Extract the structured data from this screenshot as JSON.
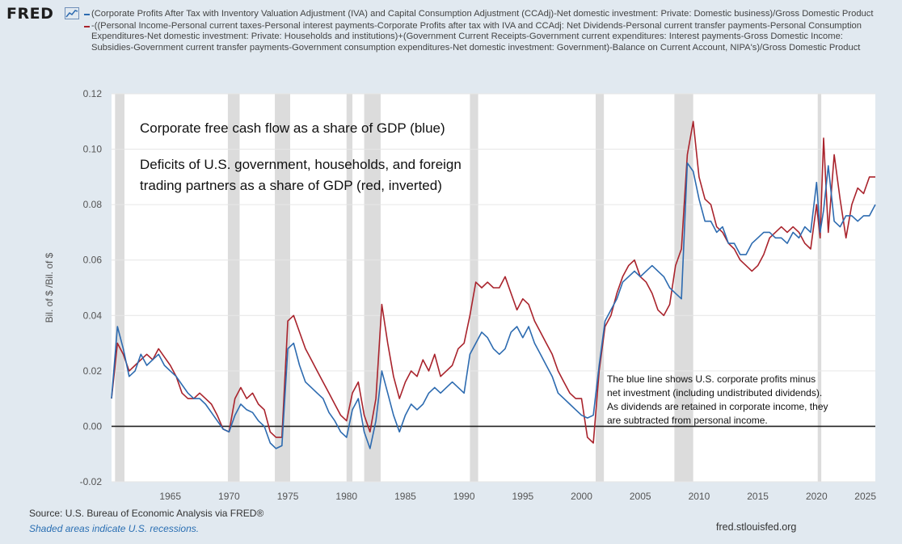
{
  "header": {
    "logo_text": "FRED",
    "logo_icon": "chart-line-icon"
  },
  "legend": [
    {
      "color": "#2d6bb0",
      "text": "(Corporate Profits After Tax with Inventory Valuation Adjustment (IVA) and Capital Consumption Adjustment (CCAdj)-Net domestic investment: Private: Domestic business)/Gross Domestic Product"
    },
    {
      "color": "#a9232c",
      "text": "-((Personal Income-Personal current taxes-Personal interest payments-Corporate Profits after tax with IVA and CCAdj: Net Dividends-Personal current transfer payments-Personal Consumption Expenditures-Net domestic investment: Private: Households and institutions)+(Government Current Receipts-Government current expenditures: Interest payments-Gross Domestic Income: Subsidies-Government current transfer payments-Government consumption expenditures-Net domestic investment: Government)-Balance on Current Account, NIPA's)/Gross Domestic Product"
    }
  ],
  "footer": {
    "source": "Source: U.S. Bureau of Economic Analysis via FRED®",
    "recession_note": "Shaded areas indicate U.S. recessions.",
    "site": "fred.stlouisfed.org"
  },
  "chart_data": {
    "type": "line",
    "ylabel": "Bil. of $ /Bil. of $",
    "xlabel": "",
    "xlim": [
      1960.0,
      2025.0
    ],
    "ylim": [
      -0.02,
      0.12
    ],
    "x_ticks": [
      1965,
      1970,
      1975,
      1980,
      1985,
      1990,
      1995,
      2000,
      2005,
      2010,
      2015,
      2020,
      2025
    ],
    "y_ticks": [
      -0.02,
      0.0,
      0.02,
      0.04,
      0.06,
      0.08,
      0.1,
      0.12
    ],
    "y_tick_labels": [
      "-0.02",
      "0.00",
      "0.02",
      "0.04",
      "0.06",
      "0.08",
      "0.10",
      "0.12"
    ],
    "zero_line": 0.0,
    "recessions": [
      [
        1960.3,
        1961.1
      ],
      [
        1969.9,
        1970.9
      ],
      [
        1973.9,
        1975.2
      ],
      [
        1980.0,
        1980.5
      ],
      [
        1981.5,
        1982.9
      ],
      [
        1990.5,
        1991.2
      ],
      [
        2001.2,
        2001.9
      ],
      [
        2007.9,
        2009.5
      ],
      [
        2020.1,
        2020.4
      ]
    ],
    "annotations": {
      "title_line": "Corporate free cash flow as a share of GDP (blue)",
      "subtitle_lines": [
        "Deficits of U.S. government, households, and foreign",
        "trading partners as a share of GDP (red, inverted)"
      ],
      "note_lines": [
        "The blue line shows U.S. corporate profits minus",
        "net investment (including undistributed dividends).",
        "As dividends are retained in corporate income, they",
        "are subtracted from personal income."
      ]
    },
    "series": [
      {
        "name": "Corporate free cash flow",
        "color": "#2d6bb0",
        "x": [
          1960.0,
          1960.5,
          1961.0,
          1961.5,
          1962.0,
          1962.5,
          1963.0,
          1963.5,
          1964.0,
          1964.5,
          1965.0,
          1965.5,
          1966.0,
          1966.5,
          1967.0,
          1967.5,
          1968.0,
          1968.5,
          1969.0,
          1969.5,
          1970.0,
          1970.5,
          1971.0,
          1971.5,
          1972.0,
          1972.5,
          1973.0,
          1973.5,
          1974.0,
          1974.5,
          1975.0,
          1975.5,
          1976.0,
          1976.5,
          1977.0,
          1977.5,
          1978.0,
          1978.5,
          1979.0,
          1979.5,
          1980.0,
          1980.5,
          1981.0,
          1981.5,
          1982.0,
          1982.5,
          1983.0,
          1983.5,
          1984.0,
          1984.5,
          1985.0,
          1985.5,
          1986.0,
          1986.5,
          1987.0,
          1987.5,
          1988.0,
          1988.5,
          1989.0,
          1989.5,
          1990.0,
          1990.5,
          1991.0,
          1991.5,
          1992.0,
          1992.5,
          1993.0,
          1993.5,
          1994.0,
          1994.5,
          1995.0,
          1995.5,
          1996.0,
          1996.5,
          1997.0,
          1997.5,
          1998.0,
          1998.5,
          1999.0,
          1999.5,
          2000.0,
          2000.5,
          2001.0,
          2001.5,
          2002.0,
          2002.5,
          2003.0,
          2003.5,
          2004.0,
          2004.5,
          2005.0,
          2005.5,
          2006.0,
          2006.5,
          2007.0,
          2007.5,
          2008.0,
          2008.5,
          2009.0,
          2009.5,
          2010.0,
          2010.5,
          2011.0,
          2011.5,
          2012.0,
          2012.5,
          2013.0,
          2013.5,
          2014.0,
          2014.5,
          2015.0,
          2015.5,
          2016.0,
          2016.5,
          2017.0,
          2017.5,
          2018.0,
          2018.5,
          2019.0,
          2019.5,
          2020.0,
          2020.3,
          2020.6,
          2021.0,
          2021.5,
          2022.0,
          2022.5,
          2023.0,
          2023.5,
          2024.0,
          2024.5,
          2025.0
        ],
        "y": [
          0.01,
          0.036,
          0.028,
          0.018,
          0.02,
          0.026,
          0.022,
          0.024,
          0.026,
          0.022,
          0.02,
          0.018,
          0.015,
          0.012,
          0.01,
          0.01,
          0.008,
          0.005,
          0.002,
          -0.001,
          -0.002,
          0.004,
          0.008,
          0.006,
          0.005,
          0.002,
          0.0,
          -0.006,
          -0.008,
          -0.007,
          0.028,
          0.03,
          0.022,
          0.016,
          0.014,
          0.012,
          0.01,
          0.005,
          0.002,
          -0.002,
          -0.004,
          0.006,
          0.01,
          -0.002,
          -0.008,
          0.002,
          0.02,
          0.012,
          0.004,
          -0.002,
          0.004,
          0.008,
          0.006,
          0.008,
          0.012,
          0.014,
          0.012,
          0.014,
          0.016,
          0.014,
          0.012,
          0.026,
          0.03,
          0.034,
          0.032,
          0.028,
          0.026,
          0.028,
          0.034,
          0.036,
          0.032,
          0.036,
          0.03,
          0.026,
          0.022,
          0.018,
          0.012,
          0.01,
          0.008,
          0.006,
          0.004,
          0.003,
          0.004,
          0.022,
          0.038,
          0.042,
          0.046,
          0.052,
          0.054,
          0.056,
          0.054,
          0.056,
          0.058,
          0.056,
          0.054,
          0.05,
          0.048,
          0.046,
          0.095,
          0.092,
          0.082,
          0.074,
          0.074,
          0.07,
          0.072,
          0.066,
          0.066,
          0.062,
          0.062,
          0.066,
          0.068,
          0.07,
          0.07,
          0.068,
          0.068,
          0.066,
          0.07,
          0.068,
          0.072,
          0.07,
          0.088,
          0.07,
          0.078,
          0.094,
          0.074,
          0.072,
          0.076,
          0.076,
          0.074,
          0.076,
          0.076,
          0.08
        ]
      },
      {
        "name": "Deficits (inverted)",
        "color": "#a9232c",
        "x": [
          1960.0,
          1960.5,
          1961.0,
          1961.5,
          1962.0,
          1962.5,
          1963.0,
          1963.5,
          1964.0,
          1964.5,
          1965.0,
          1965.5,
          1966.0,
          1966.5,
          1967.0,
          1967.5,
          1968.0,
          1968.5,
          1969.0,
          1969.5,
          1970.0,
          1970.5,
          1971.0,
          1971.5,
          1972.0,
          1972.5,
          1973.0,
          1973.5,
          1974.0,
          1974.5,
          1975.0,
          1975.5,
          1976.0,
          1976.5,
          1977.0,
          1977.5,
          1978.0,
          1978.5,
          1979.0,
          1979.5,
          1980.0,
          1980.5,
          1981.0,
          1981.5,
          1982.0,
          1982.5,
          1983.0,
          1983.5,
          1984.0,
          1984.5,
          1985.0,
          1985.5,
          1986.0,
          1986.5,
          1987.0,
          1987.5,
          1988.0,
          1988.5,
          1989.0,
          1989.5,
          1990.0,
          1990.5,
          1991.0,
          1991.5,
          1992.0,
          1992.5,
          1993.0,
          1993.5,
          1994.0,
          1994.5,
          1995.0,
          1995.5,
          1996.0,
          1996.5,
          1997.0,
          1997.5,
          1998.0,
          1998.5,
          1999.0,
          1999.5,
          2000.0,
          2000.5,
          2001.0,
          2001.5,
          2002.0,
          2002.5,
          2003.0,
          2003.5,
          2004.0,
          2004.5,
          2005.0,
          2005.5,
          2006.0,
          2006.5,
          2007.0,
          2007.5,
          2008.0,
          2008.5,
          2009.0,
          2009.5,
          2010.0,
          2010.5,
          2011.0,
          2011.5,
          2012.0,
          2012.5,
          2013.0,
          2013.5,
          2014.0,
          2014.5,
          2015.0,
          2015.5,
          2016.0,
          2016.5,
          2017.0,
          2017.5,
          2018.0,
          2018.5,
          2019.0,
          2019.5,
          2020.0,
          2020.3,
          2020.6,
          2021.0,
          2021.5,
          2022.0,
          2022.5,
          2023.0,
          2023.5,
          2024.0,
          2024.5,
          2025.0
        ],
        "y": [
          0.01,
          0.03,
          0.026,
          0.02,
          0.022,
          0.024,
          0.026,
          0.024,
          0.028,
          0.025,
          0.022,
          0.018,
          0.012,
          0.01,
          0.01,
          0.012,
          0.01,
          0.008,
          0.004,
          -0.001,
          -0.002,
          0.01,
          0.014,
          0.01,
          0.012,
          0.008,
          0.006,
          -0.002,
          -0.004,
          -0.004,
          0.038,
          0.04,
          0.034,
          0.028,
          0.024,
          0.02,
          0.016,
          0.012,
          0.008,
          0.004,
          0.002,
          0.012,
          0.016,
          0.004,
          -0.002,
          0.01,
          0.044,
          0.03,
          0.018,
          0.01,
          0.016,
          0.02,
          0.018,
          0.024,
          0.02,
          0.026,
          0.018,
          0.02,
          0.022,
          0.028,
          0.03,
          0.04,
          0.052,
          0.05,
          0.052,
          0.05,
          0.05,
          0.054,
          0.048,
          0.042,
          0.046,
          0.044,
          0.038,
          0.034,
          0.03,
          0.026,
          0.02,
          0.016,
          0.012,
          0.01,
          0.01,
          -0.004,
          -0.006,
          0.02,
          0.036,
          0.04,
          0.048,
          0.054,
          0.058,
          0.06,
          0.054,
          0.052,
          0.048,
          0.042,
          0.04,
          0.044,
          0.058,
          0.064,
          0.098,
          0.11,
          0.09,
          0.082,
          0.08,
          0.072,
          0.07,
          0.066,
          0.064,
          0.06,
          0.058,
          0.056,
          0.058,
          0.062,
          0.068,
          0.07,
          0.072,
          0.07,
          0.072,
          0.07,
          0.066,
          0.064,
          0.08,
          0.068,
          0.104,
          0.07,
          0.098,
          0.082,
          0.068,
          0.08,
          0.086,
          0.084,
          0.09,
          0.09
        ]
      }
    ]
  }
}
